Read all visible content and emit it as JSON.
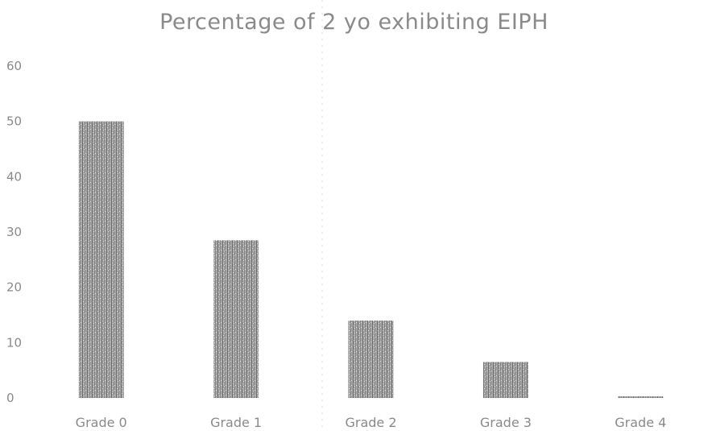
{
  "chart_data": {
    "type": "bar",
    "title": "Percentage of 2 yo exhibiting EIPH",
    "xlabel": "",
    "ylabel": "",
    "categories": [
      "Grade 0",
      "Grade 1",
      "Grade 2",
      "Grade 3",
      "Grade 4"
    ],
    "values": [
      50,
      28.5,
      14,
      6.5,
      0.3
    ],
    "ylim": [
      0,
      60
    ],
    "yticks": [
      0,
      10,
      20,
      30,
      40,
      50,
      60
    ],
    "ytick_labels": [
      "0",
      "10",
      "20",
      "30",
      "40",
      "50",
      "60"
    ],
    "grid": false,
    "legend": "none",
    "bar_color": "#9a9a9a"
  }
}
